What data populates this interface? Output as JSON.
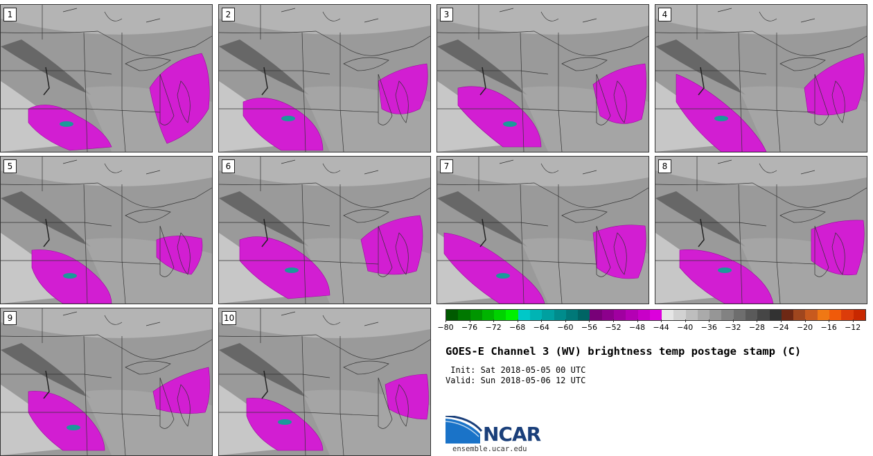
{
  "panels": [
    {
      "label": "1",
      "variant": 0
    },
    {
      "label": "2",
      "variant": 1
    },
    {
      "label": "3",
      "variant": 2
    },
    {
      "label": "4",
      "variant": 3
    },
    {
      "label": "5",
      "variant": 4
    },
    {
      "label": "6",
      "variant": 5
    },
    {
      "label": "7",
      "variant": 6
    },
    {
      "label": "8",
      "variant": 7
    },
    {
      "label": "9",
      "variant": 8
    },
    {
      "label": "10",
      "variant": 9
    }
  ],
  "colorbar": {
    "colors": [
      "#005a00",
      "#007800",
      "#009600",
      "#00b400",
      "#00d200",
      "#00f000",
      "#00c8c8",
      "#00b4b4",
      "#00a0a0",
      "#008c8c",
      "#007878",
      "#006464",
      "#780078",
      "#8c008c",
      "#a000a0",
      "#b400b4",
      "#c800c8",
      "#dc00dc",
      "#e6e6e6",
      "#d2d2d2",
      "#bebebe",
      "#aaaaaa",
      "#969696",
      "#828282",
      "#6e6e6e",
      "#5a5a5a",
      "#464646",
      "#323232",
      "#6e2814",
      "#a0461e",
      "#c85a1e",
      "#f07814",
      "#f05a0a",
      "#dc3c0a",
      "#c82800"
    ],
    "ticks": [
      "−80",
      "−76",
      "−72",
      "−68",
      "−64",
      "−60",
      "−56",
      "−52",
      "−48",
      "−44",
      "−40",
      "−36",
      "−32",
      "−28",
      "−24",
      "−20",
      "−16",
      "−12"
    ],
    "min": -80,
    "max": -10
  },
  "title": "GOES-E Channel 3 (WV) brightness temp postage stamp (C)",
  "init": " Init: Sat 2018-05-05 00 UTC",
  "valid": "Valid: Sun 2018-05-06 12 UTC",
  "logo": {
    "text": "NCAR",
    "site": "ensemble.ucar.edu",
    "blue": "#1a73c8",
    "navy": "#1a3f7a"
  }
}
